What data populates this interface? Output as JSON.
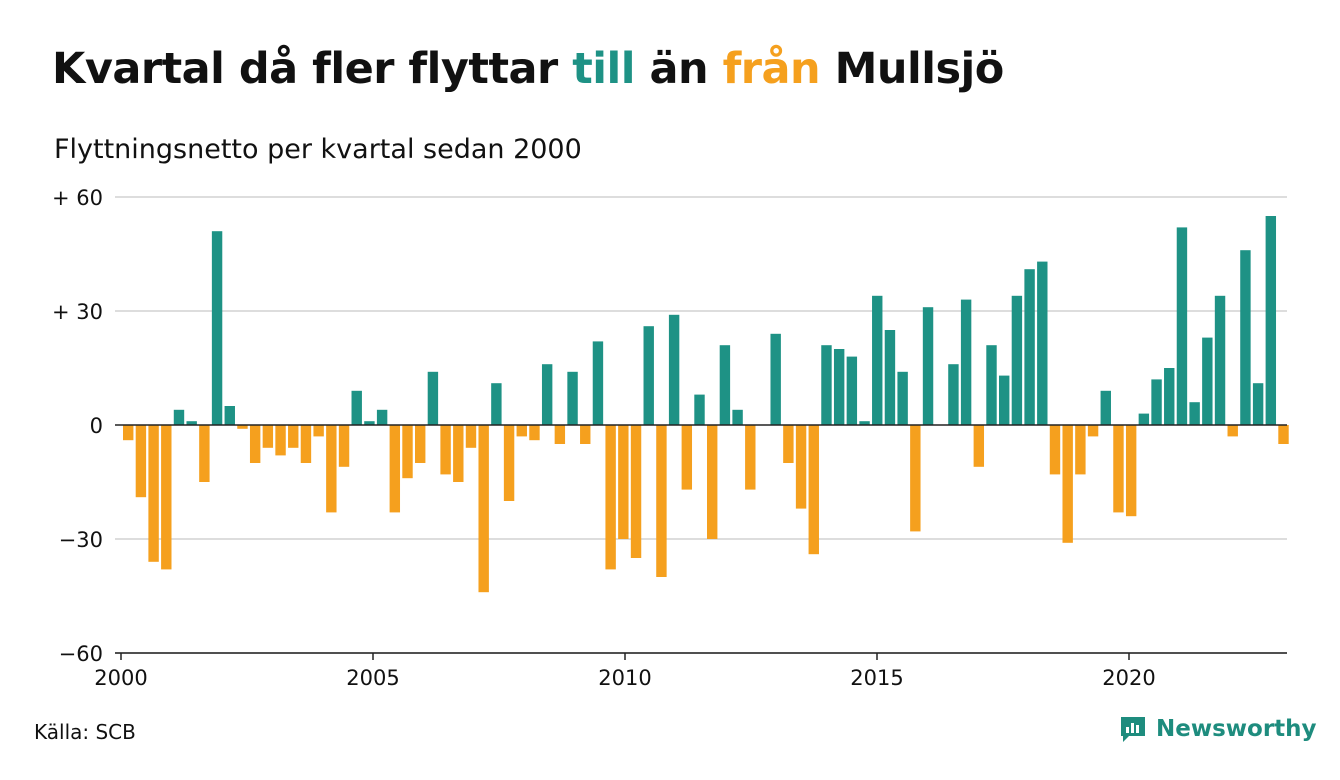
{
  "title": {
    "part1": "Kvartal då fler flyttar ",
    "part2": "till",
    "part3": " än ",
    "part4": "från",
    "part5": " Mullsjö"
  },
  "subtitle": "Flyttningsnetto per kvartal sedan 2000",
  "source": "Källa: SCB",
  "brand": {
    "name": "Newsworthy",
    "icon": "chat-bar-chart-icon"
  },
  "colors": {
    "positive": "#1e9285",
    "negative": "#f5a01e",
    "grid": "#dddddd",
    "axis": "#222222"
  },
  "chart_data": {
    "type": "bar",
    "title": "Kvartal då fler flyttar till än från Mullsjö",
    "subtitle": "Flyttningsnetto per kvartal sedan 2000",
    "x_start": "2000 Q1",
    "frequency": "quarter",
    "ylim": [
      -60,
      60
    ],
    "y_ticks": [
      60,
      30,
      0,
      -30,
      -60
    ],
    "y_tick_labels": [
      "+ 60",
      "+ 30",
      "0",
      "−30",
      "−60"
    ],
    "x_ticks": [
      2000,
      2005,
      2010,
      2015,
      2020
    ],
    "x_tick_labels": [
      "2000",
      "2005",
      "2010",
      "2015",
      "2020"
    ],
    "grid": true,
    "values": [
      -4,
      -19,
      -36,
      -38,
      4,
      1,
      -15,
      51,
      5,
      -1,
      -10,
      -6,
      -8,
      -6,
      -10,
      -3,
      -23,
      -11,
      9,
      1,
      4,
      -23,
      -14,
      -10,
      14,
      -13,
      -15,
      -6,
      -44,
      11,
      -20,
      -3,
      -4,
      16,
      -5,
      14,
      -5,
      22,
      -38,
      -30,
      -35,
      26,
      -40,
      29,
      -17,
      8,
      -30,
      21,
      4,
      -17,
      0,
      24,
      -10,
      -22,
      -34,
      21,
      20,
      18,
      1,
      34,
      25,
      14,
      -28,
      31,
      0,
      16,
      33,
      -11,
      21,
      13,
      34,
      41,
      43,
      -13,
      -31,
      -13,
      -3,
      9,
      -23,
      -24,
      3,
      12,
      15,
      52,
      6,
      23,
      34,
      -3,
      46,
      11,
      55,
      -5
    ]
  }
}
